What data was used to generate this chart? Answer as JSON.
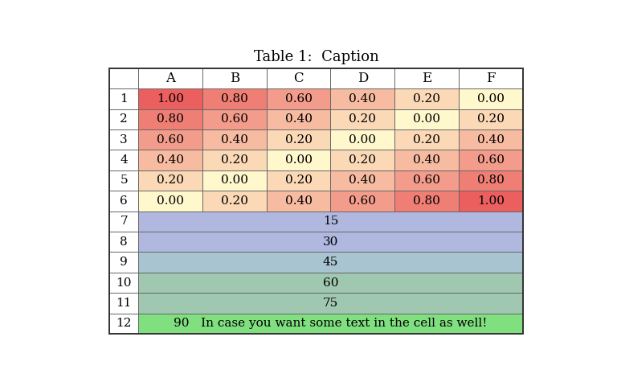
{
  "title": "Table 1:  Caption",
  "col_headers": [
    "",
    "A",
    "B",
    "C",
    "D",
    "E",
    "F"
  ],
  "grid_data": [
    [
      1.0,
      0.8,
      0.6,
      0.4,
      0.2,
      0.0
    ],
    [
      0.8,
      0.6,
      0.4,
      0.2,
      0.0,
      0.2
    ],
    [
      0.6,
      0.4,
      0.2,
      0.0,
      0.2,
      0.4
    ],
    [
      0.4,
      0.2,
      0.0,
      0.2,
      0.4,
      0.6
    ],
    [
      0.2,
      0.0,
      0.2,
      0.4,
      0.6,
      0.8
    ],
    [
      0.0,
      0.2,
      0.4,
      0.6,
      0.8,
      1.0
    ]
  ],
  "merged_rows": [
    {
      "label": "7",
      "value": "15",
      "color": "#b0b8e0"
    },
    {
      "label": "8",
      "value": "30",
      "color": "#b0b8e0"
    },
    {
      "label": "9",
      "value": "45",
      "color": "#a8c4d0"
    },
    {
      "label": "10",
      "value": "60",
      "color": "#a0c8b0"
    },
    {
      "label": "11",
      "value": "75",
      "color": "#a0c8b0"
    },
    {
      "label": "12",
      "value": "90   In case you want some text in the cell as well!",
      "color": "#80e080"
    }
  ],
  "color_low": [
    255,
    248,
    205
  ],
  "color_high": [
    235,
    95,
    95
  ],
  "border_color": "#666666",
  "header_bg": "#ffffff",
  "label_bg": "#ffffff",
  "title_fontsize": 13,
  "cell_fontsize": 11,
  "header_fontsize": 12
}
